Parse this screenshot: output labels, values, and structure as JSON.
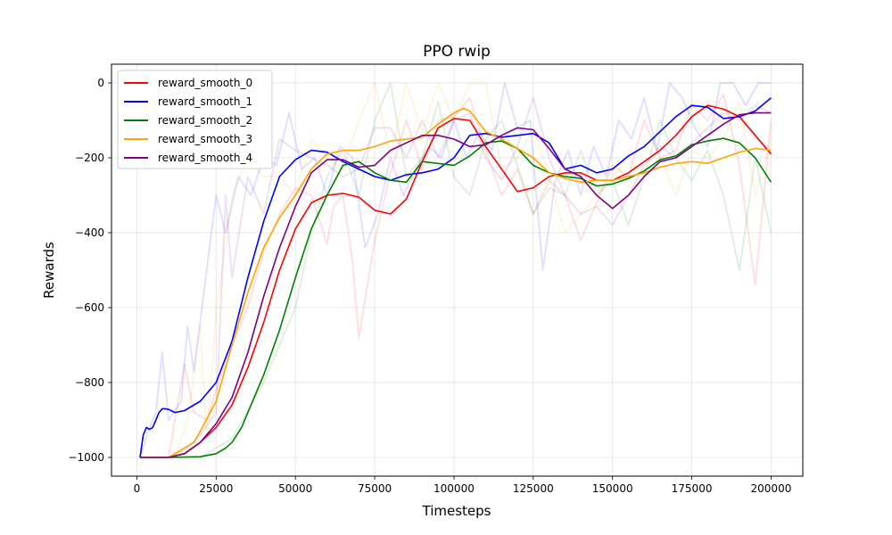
{
  "chart_data": {
    "type": "line",
    "title": "PPO rwip",
    "xlabel": "Timesteps",
    "ylabel": "Rewards",
    "xlim": [
      -8000,
      210000
    ],
    "ylim": [
      -1050,
      50
    ],
    "x_ticks": [
      0,
      25000,
      50000,
      75000,
      100000,
      125000,
      150000,
      175000,
      200000
    ],
    "y_ticks": [
      0,
      -200,
      -400,
      -600,
      -800,
      -1000
    ],
    "x_tick_labels": [
      "0",
      "25000",
      "50000",
      "75000",
      "100000",
      "125000",
      "150000",
      "175000",
      "200000"
    ],
    "y_tick_labels": [
      "0",
      "−200",
      "−400",
      "−600",
      "−800",
      "−1000"
    ],
    "grid": true,
    "legend_position": "top-left",
    "series": [
      {
        "name": "reward_smooth_0",
        "color": "#ff0000",
        "x": [
          1000,
          10000,
          15000,
          20000,
          25000,
          30000,
          35000,
          40000,
          45000,
          50000,
          55000,
          60000,
          65000,
          70000,
          75000,
          80000,
          85000,
          90000,
          95000,
          100000,
          105000,
          110000,
          115000,
          120000,
          125000,
          130000,
          135000,
          140000,
          145000,
          150000,
          155000,
          160000,
          165000,
          170000,
          175000,
          180000,
          185000,
          190000,
          195000,
          200000
        ],
        "y": [
          -1000,
          -1000,
          -990,
          -960,
          -920,
          -860,
          -760,
          -640,
          -500,
          -390,
          -320,
          -300,
          -295,
          -305,
          -340,
          -350,
          -310,
          -210,
          -120,
          -95,
          -100,
          -170,
          -230,
          -290,
          -280,
          -250,
          -240,
          -240,
          -260,
          -260,
          -240,
          -210,
          -180,
          -140,
          -90,
          -60,
          -70,
          -90,
          -140,
          -190
        ]
      },
      {
        "name": "reward_smooth_1",
        "color": "#0000ff",
        "x": [
          1000,
          2000,
          3000,
          4000,
          5000,
          6000,
          7000,
          8000,
          9000,
          10000,
          12000,
          15000,
          20000,
          25000,
          30000,
          35000,
          40000,
          45000,
          50000,
          55000,
          60000,
          65000,
          70000,
          75000,
          80000,
          85000,
          90000,
          95000,
          100000,
          105000,
          110000,
          115000,
          120000,
          125000,
          130000,
          135000,
          140000,
          145000,
          150000,
          155000,
          160000,
          165000,
          170000,
          175000,
          180000,
          185000,
          190000,
          195000,
          200000
        ],
        "y": [
          -1000,
          -940,
          -920,
          -925,
          -920,
          -900,
          -880,
          -870,
          -870,
          -872,
          -880,
          -875,
          -850,
          -800,
          -690,
          -520,
          -370,
          -250,
          -205,
          -180,
          -185,
          -210,
          -230,
          -250,
          -260,
          -245,
          -240,
          -230,
          -200,
          -140,
          -135,
          -145,
          -140,
          -135,
          -160,
          -230,
          -220,
          -240,
          -230,
          -195,
          -170,
          -130,
          -90,
          -60,
          -65,
          -95,
          -90,
          -75,
          -40
        ]
      },
      {
        "name": "reward_smooth_2",
        "color": "#008000",
        "x": [
          1000,
          10000,
          20000,
          25000,
          28000,
          30000,
          33000,
          36000,
          40000,
          45000,
          50000,
          55000,
          60000,
          65000,
          70000,
          75000,
          80000,
          85000,
          90000,
          95000,
          100000,
          105000,
          110000,
          115000,
          120000,
          125000,
          130000,
          135000,
          140000,
          145000,
          150000,
          155000,
          160000,
          165000,
          170000,
          175000,
          180000,
          185000,
          190000,
          195000,
          200000
        ],
        "y": [
          -1000,
          -1000,
          -998,
          -990,
          -975,
          -960,
          -920,
          -860,
          -780,
          -660,
          -520,
          -390,
          -300,
          -220,
          -210,
          -240,
          -260,
          -265,
          -210,
          -215,
          -220,
          -195,
          -160,
          -155,
          -175,
          -220,
          -240,
          -250,
          -255,
          -275,
          -270,
          -255,
          -235,
          -205,
          -195,
          -165,
          -155,
          -148,
          -160,
          -200,
          -265
        ]
      },
      {
        "name": "reward_smooth_3",
        "color": "#ffa500",
        "x": [
          1000,
          10000,
          13000,
          15000,
          18000,
          20000,
          25000,
          30000,
          35000,
          40000,
          45000,
          50000,
          55000,
          60000,
          65000,
          70000,
          75000,
          80000,
          85000,
          90000,
          95000,
          100000,
          103000,
          105000,
          110000,
          115000,
          120000,
          125000,
          130000,
          135000,
          140000,
          145000,
          150000,
          155000,
          160000,
          165000,
          170000,
          175000,
          180000,
          185000,
          190000,
          195000,
          200000
        ],
        "y": [
          -1000,
          -1000,
          -985,
          -975,
          -960,
          -930,
          -850,
          -700,
          -560,
          -440,
          -360,
          -300,
          -230,
          -190,
          -180,
          -180,
          -170,
          -155,
          -150,
          -145,
          -110,
          -80,
          -68,
          -75,
          -130,
          -150,
          -175,
          -200,
          -240,
          -255,
          -265,
          -260,
          -260,
          -250,
          -240,
          -225,
          -215,
          -210,
          -215,
          -200,
          -185,
          -175,
          -180
        ]
      },
      {
        "name": "reward_smooth_4",
        "color": "#800080",
        "x": [
          1000,
          10000,
          15000,
          20000,
          25000,
          30000,
          35000,
          40000,
          45000,
          50000,
          55000,
          60000,
          65000,
          70000,
          75000,
          80000,
          85000,
          90000,
          95000,
          100000,
          105000,
          110000,
          115000,
          120000,
          125000,
          130000,
          135000,
          140000,
          145000,
          150000,
          155000,
          160000,
          165000,
          170000,
          175000,
          180000,
          185000,
          190000,
          195000,
          200000
        ],
        "y": [
          -1000,
          -1000,
          -990,
          -960,
          -910,
          -840,
          -720,
          -570,
          -440,
          -330,
          -240,
          -205,
          -205,
          -225,
          -220,
          -180,
          -160,
          -140,
          -140,
          -150,
          -170,
          -165,
          -140,
          -120,
          -125,
          -175,
          -230,
          -250,
          -300,
          -335,
          -300,
          -250,
          -210,
          -200,
          -170,
          -140,
          -110,
          -85,
          -80,
          -80
        ]
      }
    ],
    "raw_series": [
      {
        "color": "#ff0000",
        "x": [
          1000,
          10000,
          15000,
          18000,
          22000,
          25000,
          30000,
          35000,
          40000,
          45000,
          50000,
          55000,
          60000,
          62000,
          65000,
          68000,
          70000,
          75000,
          80000,
          85000,
          90000,
          95000,
          100000,
          105000,
          110000,
          115000,
          120000,
          125000,
          130000,
          135000,
          140000,
          145000,
          150000,
          155000,
          160000,
          165000,
          170000,
          175000,
          180000,
          185000,
          190000,
          195000,
          200000
        ],
        "y": [
          -1000,
          -1000,
          -750,
          -880,
          -900,
          -820,
          -700,
          -600,
          -450,
          -350,
          -280,
          -300,
          -430,
          -330,
          -300,
          -480,
          -680,
          -420,
          -240,
          -100,
          -230,
          -100,
          -90,
          -40,
          -180,
          -300,
          -230,
          -350,
          -260,
          -300,
          -420,
          -320,
          -220,
          -250,
          -100,
          -200,
          -180,
          -60,
          -100,
          -30,
          -220,
          -540,
          -100
        ]
      },
      {
        "color": "#0000ff",
        "x": [
          1000,
          4000,
          6000,
          8000,
          10000,
          14000,
          16000,
          18000,
          22000,
          25000,
          28000,
          32000,
          36000,
          40000,
          44000,
          48000,
          52000,
          56000,
          60000,
          64000,
          68000,
          72000,
          76000,
          80000,
          84000,
          88000,
          92000,
          96000,
          100000,
          104000,
          108000,
          112000,
          116000,
          120000,
          124000,
          128000,
          132000,
          136000,
          140000,
          144000,
          148000,
          152000,
          156000,
          160000,
          164000,
          168000,
          172000,
          176000,
          180000,
          184000,
          188000,
          192000,
          196000,
          200000
        ],
        "y": [
          -1000,
          -920,
          -880,
          -720,
          -900,
          -850,
          -650,
          -770,
          -500,
          -300,
          -400,
          -250,
          -300,
          -200,
          -220,
          -80,
          -230,
          -200,
          -300,
          -170,
          -200,
          -440,
          -350,
          -200,
          -300,
          -230,
          -170,
          -200,
          -100,
          -200,
          -130,
          -180,
          0,
          -120,
          -100,
          -500,
          -260,
          -180,
          -300,
          -170,
          -250,
          -100,
          -150,
          -40,
          -180,
          0,
          -40,
          -120,
          -170,
          0,
          0,
          -60,
          0,
          0
        ]
      },
      {
        "color": "#008000",
        "x": [
          1000,
          20000,
          30000,
          40000,
          50000,
          55000,
          60000,
          65000,
          70000,
          75000,
          80000,
          85000,
          90000,
          95000,
          100000,
          105000,
          110000,
          115000,
          120000,
          125000,
          130000,
          135000,
          140000,
          145000,
          150000,
          155000,
          160000,
          165000,
          170000,
          175000,
          180000,
          185000,
          190000,
          195000,
          200000
        ],
        "y": [
          -1000,
          -1000,
          -950,
          -800,
          -600,
          -400,
          -250,
          -180,
          -300,
          -100,
          0,
          -250,
          -200,
          -50,
          -250,
          -300,
          -150,
          -100,
          -220,
          -350,
          -280,
          -300,
          -180,
          -300,
          -260,
          -380,
          -250,
          -100,
          -200,
          -260,
          -180,
          -300,
          -500,
          -200,
          -400
        ]
      },
      {
        "color": "#ffa500",
        "x": [
          1000,
          12000,
          16000,
          20000,
          22000,
          25000,
          30000,
          35000,
          40000,
          45000,
          50000,
          55000,
          60000,
          65000,
          70000,
          75000,
          80000,
          85000,
          90000,
          95000,
          100000,
          105000,
          110000,
          115000,
          120000,
          125000,
          130000,
          135000,
          140000,
          145000,
          150000,
          155000,
          160000,
          165000,
          170000,
          175000,
          180000,
          185000,
          190000,
          195000,
          200000
        ],
        "y": [
          -1000,
          -1000,
          -900,
          -650,
          -950,
          -620,
          -300,
          -200,
          -250,
          -250,
          -300,
          -150,
          -200,
          -230,
          -100,
          0,
          -200,
          0,
          -130,
          0,
          -100,
          0,
          0,
          -230,
          -200,
          -120,
          -250,
          -400,
          -350,
          -300,
          -250,
          -200,
          -250,
          -200,
          -300,
          -180,
          -200,
          -150,
          -50,
          -300,
          -150
        ]
      },
      {
        "color": "#800080",
        "x": [
          1000,
          10000,
          15000,
          20000,
          25000,
          28000,
          30000,
          35000,
          40000,
          45000,
          50000,
          55000,
          60000,
          65000,
          70000,
          75000,
          80000,
          85000,
          90000,
          95000,
          100000,
          105000,
          110000,
          115000,
          120000,
          125000,
          130000,
          135000,
          140000,
          145000,
          150000,
          155000,
          160000,
          165000,
          170000,
          175000,
          180000,
          185000,
          190000,
          195000,
          200000
        ],
        "y": [
          -1000,
          -1000,
          -980,
          -940,
          -880,
          -300,
          -520,
          -250,
          -350,
          -150,
          -180,
          -200,
          -220,
          -250,
          -230,
          -120,
          -120,
          -200,
          -100,
          -200,
          -100,
          -80,
          -200,
          -260,
          -170,
          -40,
          -200,
          -300,
          -350,
          -330,
          -380,
          -300,
          -220,
          -170,
          -200,
          -160,
          -120,
          -80,
          -100,
          -60,
          -80
        ]
      }
    ]
  }
}
